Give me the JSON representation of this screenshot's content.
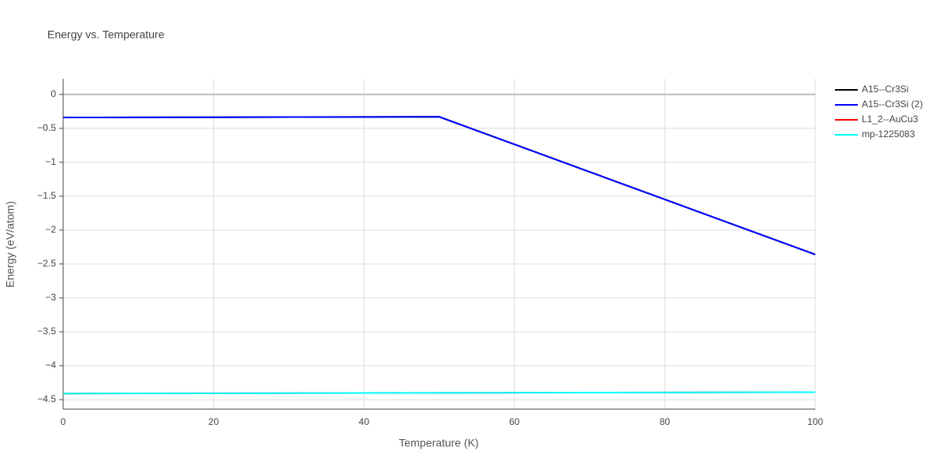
{
  "chart_data": {
    "type": "line",
    "title": "Energy vs. Temperature",
    "x_label": "Temperature (K)",
    "y_label": "Energy (eV/atom)",
    "x": [
      0,
      10,
      20,
      30,
      40,
      50,
      60,
      70,
      80,
      90,
      100
    ],
    "series": [
      {
        "name": "A15--Cr3Si",
        "color": "#000000",
        "values": [
          -0.34,
          -0.338,
          -0.336,
          -0.334,
          -0.332,
          -0.33,
          -0.736,
          -1.142,
          -1.548,
          -1.954,
          -2.36
        ]
      },
      {
        "name": "A15--Cr3Si (2)",
        "color": "#0000ff",
        "values": [
          -0.34,
          -0.338,
          -0.336,
          -0.334,
          -0.332,
          -0.33,
          -0.736,
          -1.142,
          -1.548,
          -1.954,
          -2.36
        ]
      },
      {
        "name": "L1_2--AuCu3",
        "color": "#ff0000",
        "values": [
          -4.41,
          -4.408,
          -4.406,
          -4.404,
          -4.402,
          -4.4,
          -4.398,
          -4.396,
          -4.394,
          -4.392,
          -4.39
        ]
      },
      {
        "name": "mp-1225083",
        "color": "#00ffff",
        "values": [
          -4.41,
          -4.408,
          -4.406,
          -4.404,
          -4.402,
          -4.4,
          -4.398,
          -4.396,
          -4.394,
          -4.392,
          -4.39
        ]
      }
    ],
    "xlim": [
      0,
      100
    ],
    "xticks": [
      0,
      20,
      40,
      60,
      80,
      100
    ],
    "ylim": [
      -4.64,
      0.23
    ],
    "yticks": [
      0,
      {
        "value": -0.5,
        "label": "−0.5"
      },
      {
        "value": -1,
        "label": "−1"
      },
      {
        "value": -1.5,
        "label": "−1.5"
      },
      {
        "value": -2,
        "label": "−2"
      },
      {
        "value": -2.5,
        "label": "−2.5"
      },
      {
        "value": -3,
        "label": "−3"
      },
      {
        "value": -3.5,
        "label": "−3.5"
      },
      {
        "value": -4,
        "label": "−4"
      },
      {
        "value": -4.5,
        "label": "−4.5"
      }
    ],
    "grid": true
  }
}
